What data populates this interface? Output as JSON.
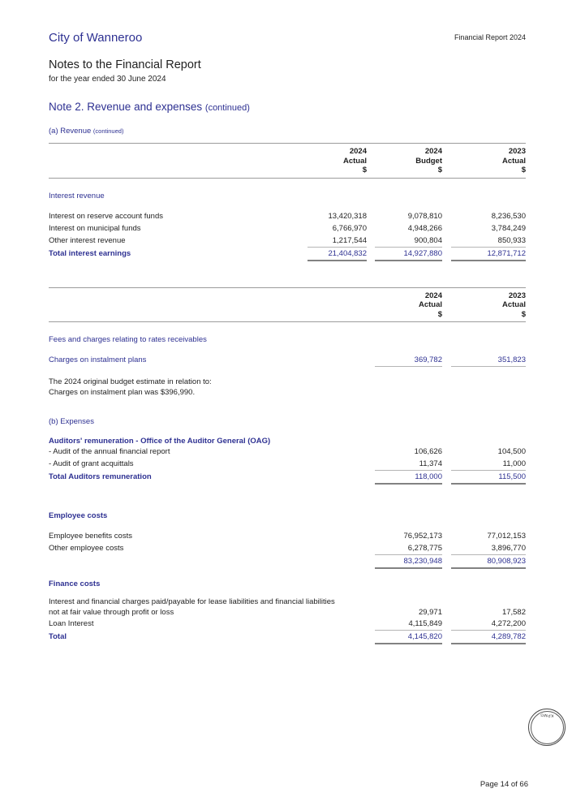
{
  "page": {
    "brand": "City of Wanneroo",
    "report_tag": "Financial Report 2024",
    "title": "Notes to the Financial Report",
    "subtitle": "for the year ended 30 June 2024",
    "note_title": "Note 2. Revenue and expenses",
    "note_title_suffix": "(continued)",
    "section_a": "(a) Revenue",
    "section_a_suffix": "(continued)",
    "section_b": "(b) Expenses",
    "footer": "Page 14 of 66",
    "stamp_label": "KPMG"
  },
  "colors": {
    "accent": "#2e3192",
    "rule": "#9c9c9c",
    "thin_rule": "#b5b5b5",
    "total_rule": "#828282"
  },
  "table1": {
    "columns": [
      [
        "2024",
        "Actual",
        "$"
      ],
      [
        "2024",
        "Budget",
        "$"
      ],
      [
        "2023",
        "Actual",
        "$"
      ]
    ],
    "section": "Interest revenue",
    "rows": [
      {
        "label": "Interest on reserve account funds",
        "values": [
          "13,420,318",
          "9,078,810",
          "8,236,530"
        ]
      },
      {
        "label": "Interest on municipal funds",
        "values": [
          "6,766,970",
          "4,948,266",
          "3,784,249"
        ]
      },
      {
        "label": "Other interest revenue",
        "values": [
          "1,217,544",
          "900,804",
          "850,933"
        ]
      },
      {
        "label": "Total interest earnings",
        "values": [
          "21,404,832",
          "14,927,880",
          "12,871,712"
        ]
      }
    ]
  },
  "table2": {
    "columns": [
      [
        "2024",
        "Actual",
        "$"
      ],
      [
        "2023",
        "Actual",
        "$"
      ]
    ],
    "section": "Fees and charges relating to rates receivables",
    "charges_row": {
      "label": "Charges on instalment plans",
      "values": [
        "369,782",
        "351,823"
      ]
    },
    "note_lines": [
      "The 2024 original budget estimate in relation to:",
      "Charges on instalment plan was $396,990."
    ]
  },
  "expenses": {
    "auditors": {
      "heading": "Auditors' remuneration - Office of the Auditor General (OAG)",
      "rows": [
        {
          "label": "- Audit of the annual financial report",
          "values": [
            "106,626",
            "104,500"
          ]
        },
        {
          "label": "- Audit of grant acquittals",
          "values": [
            "11,374",
            "11,000"
          ]
        },
        {
          "label": "Total Auditors remuneration",
          "values": [
            "118,000",
            "115,500"
          ]
        }
      ]
    },
    "employee": {
      "heading": "Employee costs",
      "rows": [
        {
          "label": "Employee benefits costs",
          "values": [
            "76,952,173",
            "77,012,153"
          ]
        },
        {
          "label": "Other employee costs",
          "values": [
            "6,278,775",
            "3,896,770"
          ]
        },
        {
          "label": "",
          "values": [
            "83,230,948",
            "80,908,923"
          ]
        }
      ]
    },
    "finance": {
      "heading": "Finance costs",
      "para_row": {
        "label_line1": "Interest and financial charges paid/payable for lease liabilities and financial liabilities",
        "label_line2": "not at fair value through profit or loss",
        "values": [
          "29,971",
          "17,582"
        ]
      },
      "rows": [
        {
          "label": "Loan Interest",
          "values": [
            "4,115,849",
            "4,272,200"
          ]
        },
        {
          "label": "Total",
          "values": [
            "4,145,820",
            "4,289,782"
          ]
        }
      ]
    }
  }
}
